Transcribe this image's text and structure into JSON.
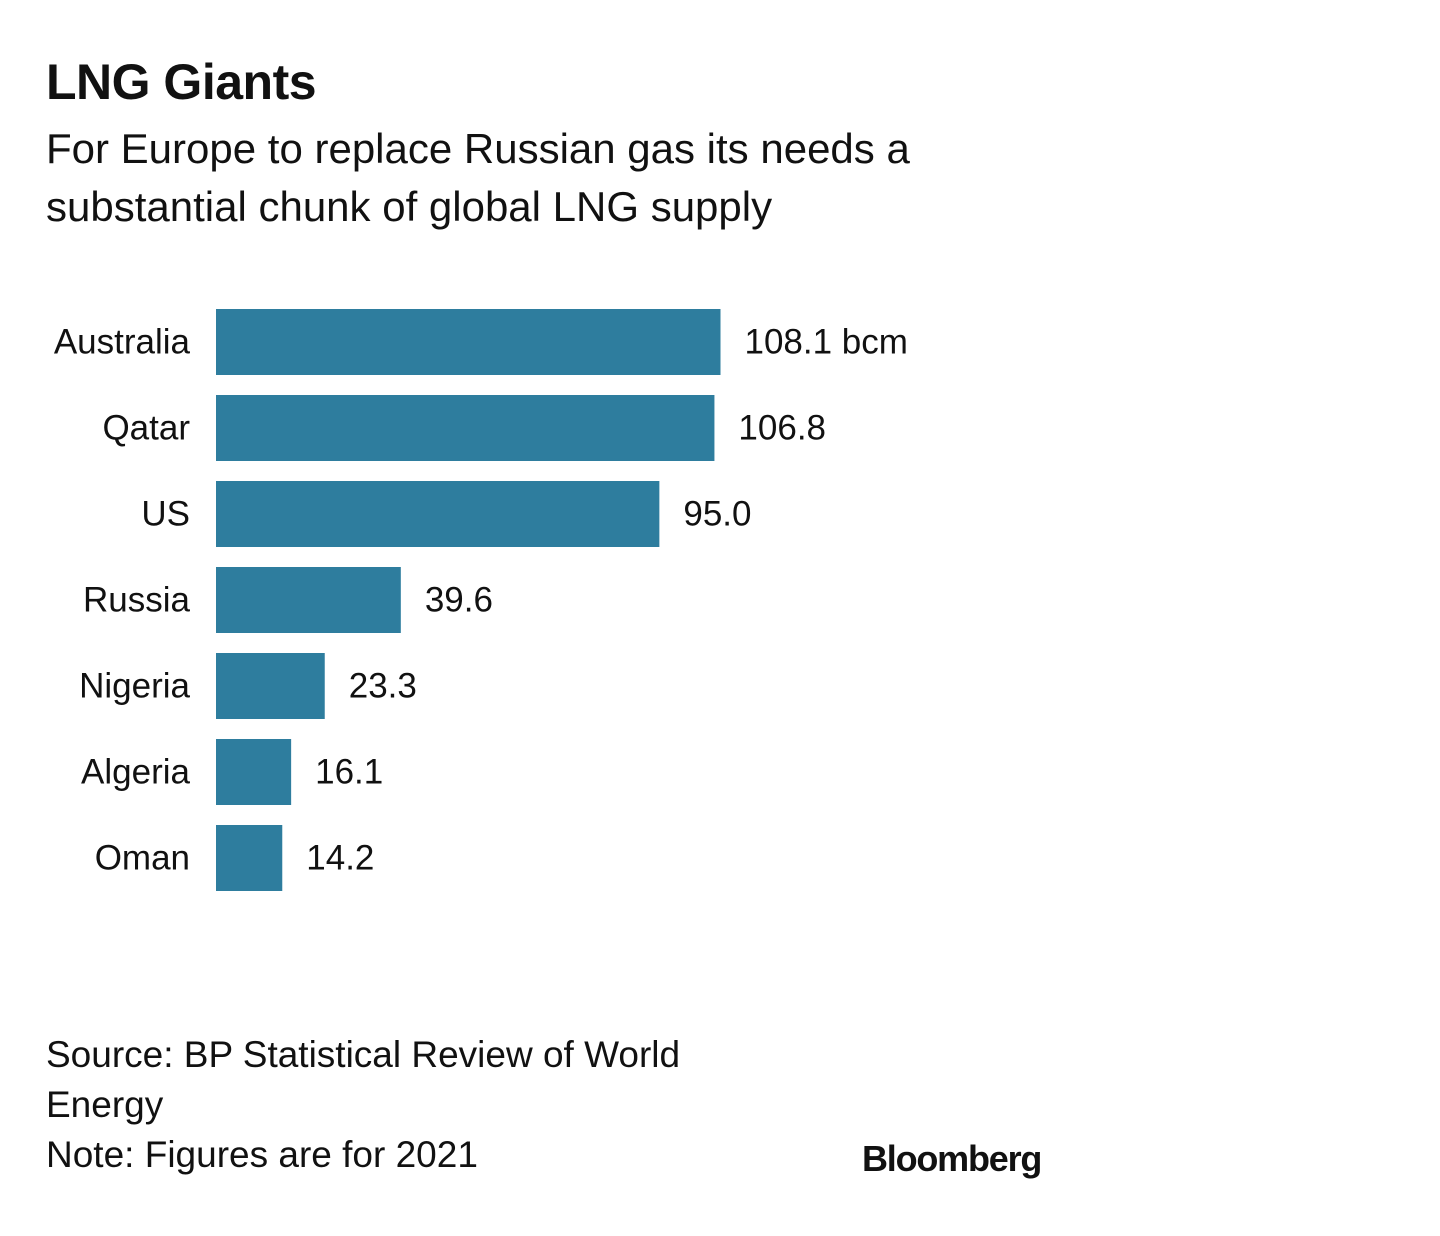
{
  "header": {
    "title": "LNG Giants",
    "subtitle": "For Europe to replace Russian gas its needs a substantial chunk of global LNG supply"
  },
  "chart_data": {
    "type": "bar",
    "orientation": "horizontal",
    "categories": [
      "Australia",
      "Qatar",
      "US",
      "Russia",
      "Nigeria",
      "Algeria",
      "Oman"
    ],
    "values": [
      108.1,
      106.8,
      95.0,
      39.6,
      23.3,
      16.1,
      14.2
    ],
    "value_labels": [
      "108.1 bcm",
      "106.8",
      "95.0",
      "39.6",
      "23.3",
      "16.1",
      "14.2"
    ],
    "unit": "bcm",
    "bar_color": "#2e7d9e",
    "grid": false,
    "legend": "none"
  },
  "footer": {
    "source_line1": "Source: BP Statistical Review of World",
    "source_line2": "Energy",
    "note": "Note: Figures are for 2021",
    "brand": "Bloomberg"
  }
}
